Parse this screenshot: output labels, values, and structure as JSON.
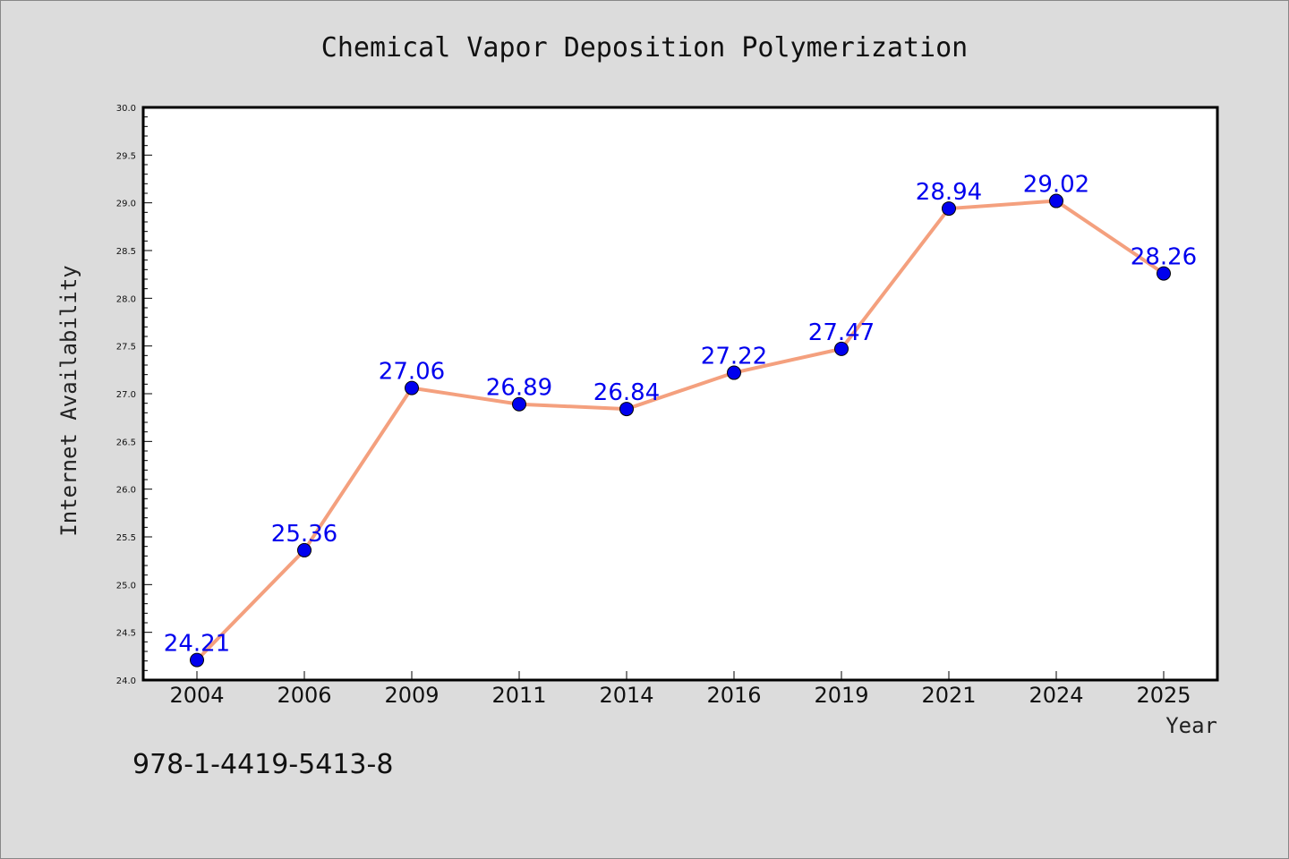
{
  "chart_data": {
    "type": "line",
    "title": "Chemical Vapor Deposition Polymerization",
    "xlabel": "Year",
    "ylabel": "Internet Availability",
    "categories": [
      "2004",
      "2006",
      "2009",
      "2011",
      "2014",
      "2016",
      "2019",
      "2021",
      "2024",
      "2025"
    ],
    "series": [
      {
        "values": [
          24.21,
          25.36,
          27.06,
          26.89,
          26.84,
          27.22,
          27.47,
          28.94,
          29.02,
          28.26
        ],
        "labels": [
          "24.21",
          "25.36",
          "27.06",
          "26.89",
          "26.84",
          "27.22",
          "27.47",
          "28.94",
          "29.02",
          "28.26"
        ],
        "line_color": "#f4a07e",
        "marker_color": "#0000ee"
      }
    ],
    "ylim": [
      24.0,
      30.0
    ],
    "yticks": [
      "24.0",
      "24.5",
      "25.0",
      "25.5",
      "26.0",
      "26.5",
      "27.0",
      "27.5",
      "28.0",
      "28.5",
      "29.0",
      "29.5",
      "30.0"
    ],
    "grid": false,
    "legend": "none"
  },
  "annotation": {
    "isbn": "978-1-4419-5413-8"
  },
  "colors": {
    "background": "#dcdcdc",
    "plot_background": "#ffffff",
    "frame": "#000000"
  }
}
